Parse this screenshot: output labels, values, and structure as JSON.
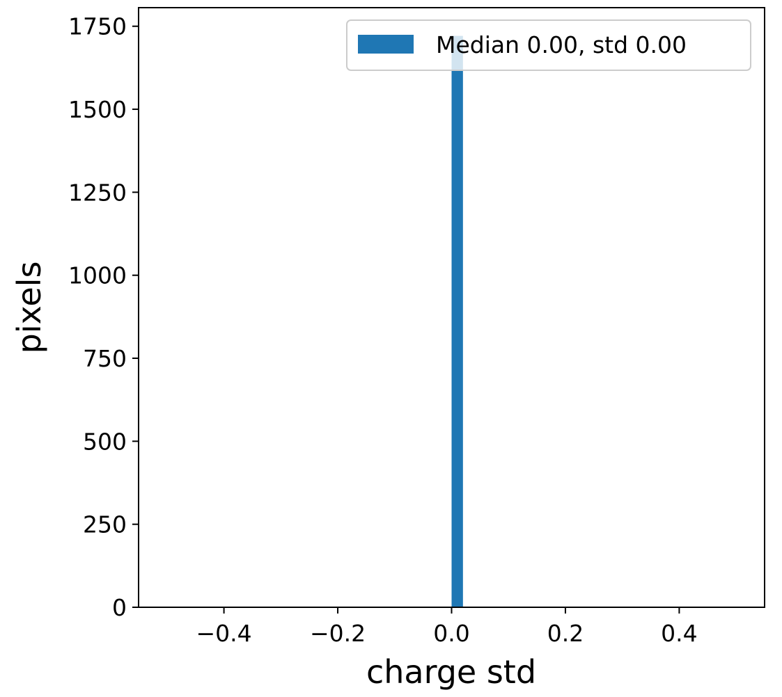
{
  "chart_data": {
    "type": "bar",
    "bins": [
      {
        "x_start": 0.0,
        "x_end": 0.02,
        "count": 1721
      }
    ],
    "xlim": [
      -0.55,
      0.55
    ],
    "ylim": [
      0,
      1806
    ],
    "xticks": [
      {
        "value": -0.4,
        "label": "−0.4"
      },
      {
        "value": -0.2,
        "label": "−0.2"
      },
      {
        "value": 0.0,
        "label": "0.0"
      },
      {
        "value": 0.2,
        "label": "0.2"
      },
      {
        "value": 0.4,
        "label": "0.4"
      }
    ],
    "yticks": [
      {
        "value": 0,
        "label": "0"
      },
      {
        "value": 250,
        "label": "250"
      },
      {
        "value": 500,
        "label": "500"
      },
      {
        "value": 750,
        "label": "750"
      },
      {
        "value": 1000,
        "label": "1000"
      },
      {
        "value": 1250,
        "label": "1250"
      },
      {
        "value": 1500,
        "label": "1500"
      },
      {
        "value": 1750,
        "label": "1750"
      }
    ],
    "xlabel": "charge std",
    "ylabel": "pixels",
    "series": [
      {
        "name": "Median 0.00, std 0.00",
        "color": "#1f77b4"
      }
    ],
    "legend": {
      "position": "top-right",
      "label": "Median 0.00, std 0.00"
    },
    "grid": false
  }
}
